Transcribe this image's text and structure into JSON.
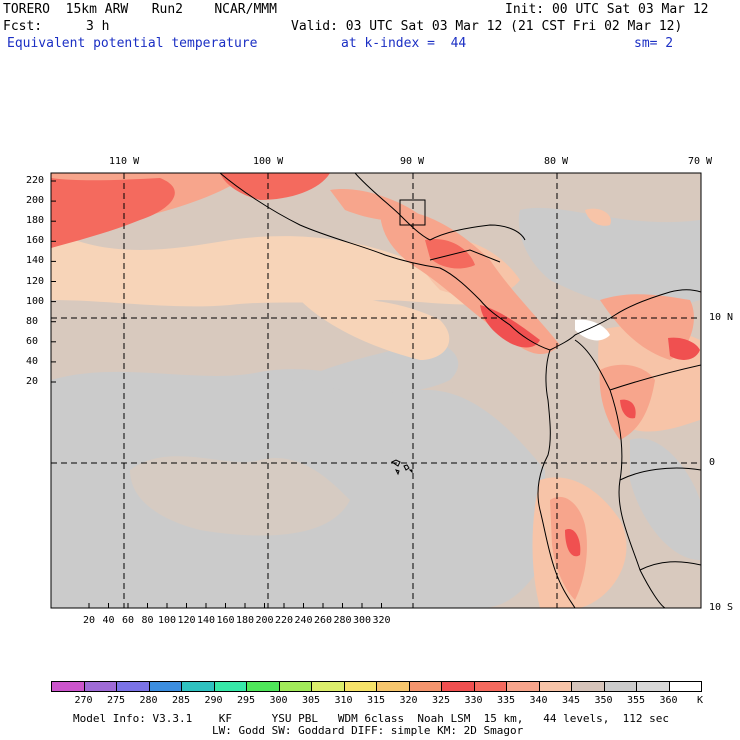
{
  "header": {
    "model_line": "TORERO  15km ARW   Run2    NCAR/MMM",
    "init": "Init: 00 UTC Sat 03 Mar 12",
    "fcst_label": "Fcst:",
    "fcst_value": "3 h",
    "valid": "Valid: 03 UTC Sat 03 Mar 12 (21 CST Fri 02 Mar 12)",
    "field": "Equivalent potential temperature",
    "level": "at k-index =  44",
    "smoothing": "sm= 2"
  },
  "map": {
    "top_lon_labels": [
      "110 W",
      "100 W",
      "90 W",
      "80 W",
      "70 W"
    ],
    "right_lat_labels": [
      "10 N",
      "0",
      "10 S"
    ],
    "y_ticks": [
      "220",
      "200",
      "180",
      "160",
      "140",
      "120",
      "100",
      "80",
      "60",
      "40",
      "20"
    ],
    "x_ticks": [
      "20",
      "40",
      "60",
      "80",
      "100",
      "120",
      "140",
      "160",
      "180",
      "200",
      "220",
      "240",
      "260",
      "280",
      "300",
      "320"
    ]
  },
  "colorbar": {
    "labels": [
      "270",
      "275",
      "280",
      "285",
      "290",
      "295",
      "300",
      "305",
      "310",
      "315",
      "320",
      "325",
      "330",
      "335",
      "340",
      "345",
      "350",
      "355",
      "360"
    ],
    "unit": "K",
    "colors": [
      "#cc55cc",
      "#9f6bd6",
      "#7b73e6",
      "#3c8ee0",
      "#2fc2c0",
      "#37e8a8",
      "#4fe65a",
      "#a2ea5a",
      "#dcee6c",
      "#f6e36a",
      "#f6c66e",
      "#f4956e",
      "#f05050",
      "#f46a5e",
      "#f7a58c",
      "#f7c4a8",
      "#d6c4ba",
      "#cbcbcb",
      "#d8d8d8",
      "#ffffff"
    ]
  },
  "footer": {
    "line1": "Model Info: V3.3.1    KF      YSU PBL   WDM 6class  Noah LSM  15 km,   44 levels,  112 sec",
    "line2": "LW: Godd SW: Goddard DIFF: simple KM: 2D Smagor"
  }
}
